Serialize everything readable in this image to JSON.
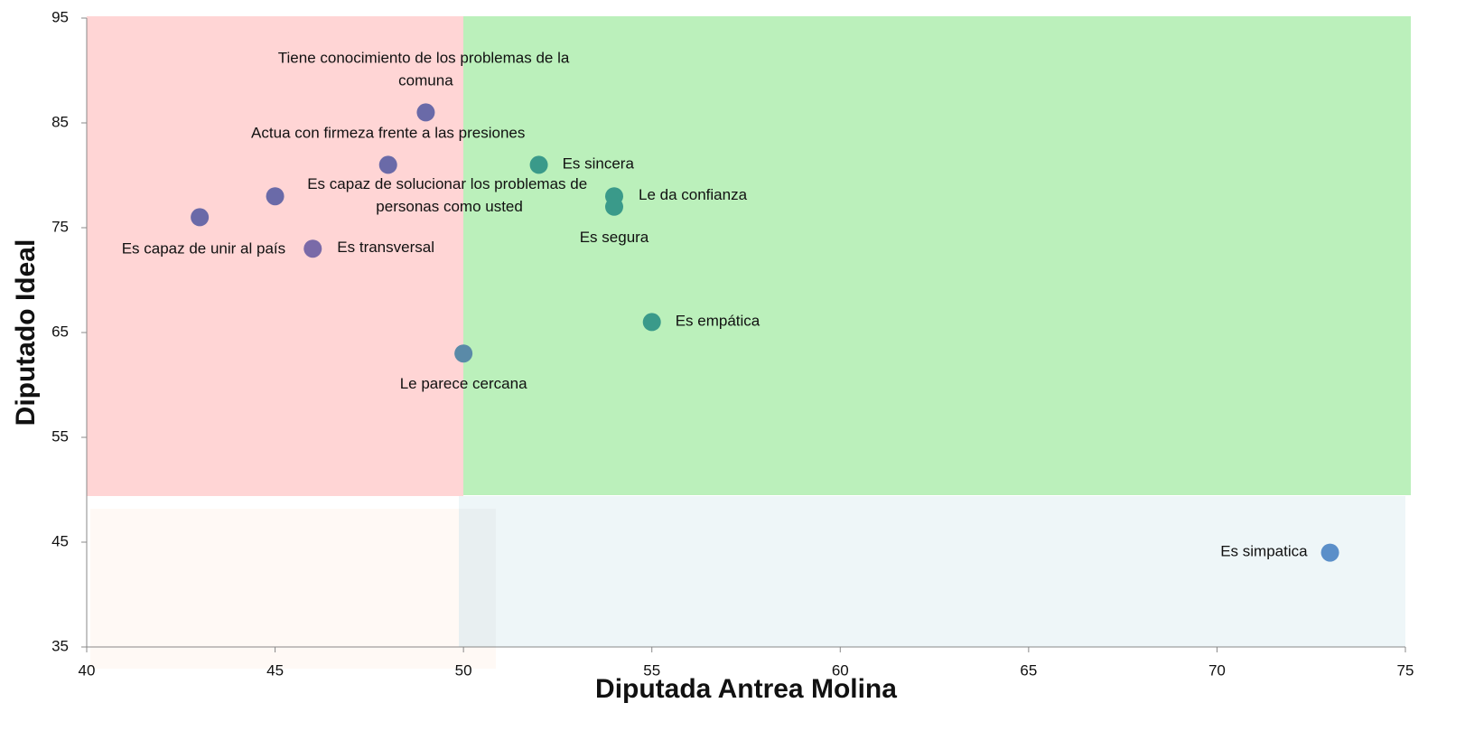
{
  "chart_data": {
    "type": "scatter",
    "xlabel": "Diputada Antrea Molina",
    "ylabel": "Diputado Ideal",
    "labels": [
      "Tiene conocimiento de los problemas de la comuna",
      "Actua con firmeza frente a las presiones",
      "Es capaz de solucionar los problemas de personas como usted",
      "Es capaz de unir al país",
      "Es transversal",
      "Le parece cercana",
      "Es sincera",
      "Le da confianza",
      "Es segura",
      "Es empática",
      "Es simpatica"
    ],
    "x": [
      49,
      48,
      45,
      43,
      46,
      50,
      52,
      54,
      54,
      55,
      73
    ],
    "y": [
      86,
      81,
      78,
      76,
      73,
      63,
      81,
      78,
      77,
      66,
      44
    ],
    "colors": [
      "#6a6aa8",
      "#6a6aa8",
      "#6a6aa8",
      "#6a6aa8",
      "#7a6aa8",
      "#5a8aa8",
      "#3a9a8a",
      "#3a9a8a",
      "#3a9a8a",
      "#3a9a8a",
      "#5b8fc9"
    ],
    "xlim": [
      40,
      75
    ],
    "xticks": [
      40,
      45,
      50,
      55,
      60,
      65,
      70,
      75
    ],
    "ylim": [
      35,
      95
    ],
    "yticks": [
      35,
      45,
      55,
      65,
      75,
      85,
      95
    ]
  }
}
